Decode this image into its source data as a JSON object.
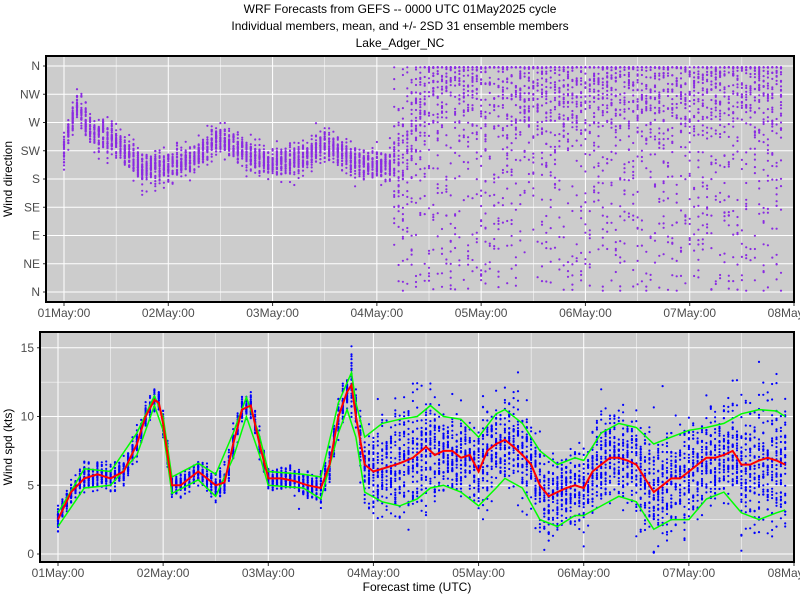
{
  "header": {
    "line1": "WRF Forecasts from GEFS --  0000 UTC 01May2025  cycle",
    "line2": "Individual members, mean, and +/- 2SD    31 ensemble members",
    "line3": "Lake_Adger_NC"
  },
  "colors": {
    "panel_bg": "#cccccc",
    "grid": "#ffffff",
    "direction_points": "#8a2be2",
    "speed_points": "#0000ff",
    "mean_line": "#ff0000",
    "sd_lines": "#00ff00"
  },
  "chart_data": [
    {
      "type": "scatter",
      "ylabel": "Wind direction",
      "xlabel": "",
      "x_ticks": [
        "01May:00",
        "02May:00",
        "03May:00",
        "04May:00",
        "05May:00",
        "06May:00",
        "07May:00",
        "08May:00"
      ],
      "xlim_hours": [
        0,
        168
      ],
      "y_ticks": [
        "N",
        "NE",
        "E",
        "SE",
        "S",
        "SW",
        "W",
        "NW",
        "N"
      ],
      "ylim_degrees": [
        0,
        360
      ],
      "grid": true,
      "members": 31,
      "series": [
        {
          "representation": "ensemble member points (31 per hour)",
          "ensemble_median_direction_deg": [
            {
              "hour": 0,
              "deg": 230
            },
            {
              "hour": 3,
              "deg": 300
            },
            {
              "hour": 6,
              "deg": 255
            },
            {
              "hour": 12,
              "deg": 240
            },
            {
              "hour": 18,
              "deg": 195
            },
            {
              "hour": 24,
              "deg": 200
            },
            {
              "hour": 30,
              "deg": 215
            },
            {
              "hour": 36,
              "deg": 245
            },
            {
              "hour": 42,
              "deg": 220
            },
            {
              "hour": 48,
              "deg": 205
            },
            {
              "hour": 54,
              "deg": 210
            },
            {
              "hour": 60,
              "deg": 235
            },
            {
              "hour": 66,
              "deg": 210
            },
            {
              "hour": 72,
              "deg": 200
            },
            {
              "hour": 78,
              "deg": 210
            },
            {
              "hour": 84,
              "deg": 330
            },
            {
              "hour": 90,
              "deg": 340
            },
            {
              "hour": 96,
              "deg": 350
            },
            {
              "hour": 102,
              "deg": 345
            },
            {
              "hour": 108,
              "deg": 330
            },
            {
              "hour": 114,
              "deg": 320
            },
            {
              "hour": 120,
              "deg": 335
            },
            {
              "hour": 126,
              "deg": 330
            },
            {
              "hour": 132,
              "deg": 330
            },
            {
              "hour": 138,
              "deg": 320
            },
            {
              "hour": 144,
              "deg": 325
            },
            {
              "hour": 150,
              "deg": 335
            },
            {
              "hour": 156,
              "deg": 335
            },
            {
              "hour": 162,
              "deg": 330
            },
            {
              "hour": 168,
              "deg": 325
            }
          ]
        }
      ]
    },
    {
      "type": "line",
      "ylabel": "Wind spd (kts)",
      "xlabel": "Forecast time (UTC)",
      "x_ticks": [
        "01May:00",
        "02May:00",
        "03May:00",
        "04May:00",
        "05May:00",
        "06May:00",
        "07May:00",
        "08May:00"
      ],
      "xlim_hours": [
        0,
        168
      ],
      "y_ticks": [
        "0",
        "5",
        "10",
        "15"
      ],
      "ylim": [
        0,
        16
      ],
      "grid": true,
      "members": 31,
      "series": [
        {
          "name": "mean",
          "points": [
            {
              "hour": 0,
              "kts": 2.5
            },
            {
              "hour": 3,
              "kts": 4.5
            },
            {
              "hour": 6,
              "kts": 5.5
            },
            {
              "hour": 9,
              "kts": 5.8
            },
            {
              "hour": 12,
              "kts": 5.5
            },
            {
              "hour": 15,
              "kts": 6.0
            },
            {
              "hour": 18,
              "kts": 8.0
            },
            {
              "hour": 20,
              "kts": 10.0
            },
            {
              "hour": 22,
              "kts": 11.2
            },
            {
              "hour": 23,
              "kts": 11.0
            },
            {
              "hour": 24,
              "kts": 9.5
            },
            {
              "hour": 26,
              "kts": 5.0
            },
            {
              "hour": 28,
              "kts": 5.0
            },
            {
              "hour": 30,
              "kts": 5.5
            },
            {
              "hour": 32,
              "kts": 6.0
            },
            {
              "hour": 34,
              "kts": 5.5
            },
            {
              "hour": 36,
              "kts": 5.0
            },
            {
              "hour": 38,
              "kts": 5.2
            },
            {
              "hour": 40,
              "kts": 8.0
            },
            {
              "hour": 42,
              "kts": 10.5
            },
            {
              "hour": 44,
              "kts": 10.8
            },
            {
              "hour": 46,
              "kts": 8.0
            },
            {
              "hour": 48,
              "kts": 5.5
            },
            {
              "hour": 51,
              "kts": 5.5
            },
            {
              "hour": 54,
              "kts": 5.3
            },
            {
              "hour": 57,
              "kts": 5.0
            },
            {
              "hour": 60,
              "kts": 4.8
            },
            {
              "hour": 62,
              "kts": 6.5
            },
            {
              "hour": 64,
              "kts": 10.0
            },
            {
              "hour": 66,
              "kts": 11.8
            },
            {
              "hour": 67,
              "kts": 12.3
            },
            {
              "hour": 68,
              "kts": 10.0
            },
            {
              "hour": 70,
              "kts": 6.5
            },
            {
              "hour": 72,
              "kts": 6.0
            },
            {
              "hour": 75,
              "kts": 6.3
            },
            {
              "hour": 78,
              "kts": 6.6
            },
            {
              "hour": 81,
              "kts": 7.0
            },
            {
              "hour": 84,
              "kts": 7.8
            },
            {
              "hour": 86,
              "kts": 7.2
            },
            {
              "hour": 88,
              "kts": 7.5
            },
            {
              "hour": 90,
              "kts": 7.5
            },
            {
              "hour": 92,
              "kts": 7.0
            },
            {
              "hour": 94,
              "kts": 7.2
            },
            {
              "hour": 96,
              "kts": 6.0
            },
            {
              "hour": 98,
              "kts": 7.5
            },
            {
              "hour": 100,
              "kts": 8.0
            },
            {
              "hour": 102,
              "kts": 8.3
            },
            {
              "hour": 104,
              "kts": 7.8
            },
            {
              "hour": 106,
              "kts": 7.2
            },
            {
              "hour": 108,
              "kts": 6.5
            },
            {
              "hour": 110,
              "kts": 5.0
            },
            {
              "hour": 112,
              "kts": 4.2
            },
            {
              "hour": 114,
              "kts": 4.5
            },
            {
              "hour": 116,
              "kts": 4.8
            },
            {
              "hour": 118,
              "kts": 5.0
            },
            {
              "hour": 120,
              "kts": 4.8
            },
            {
              "hour": 122,
              "kts": 6.0
            },
            {
              "hour": 124,
              "kts": 6.5
            },
            {
              "hour": 126,
              "kts": 7.0
            },
            {
              "hour": 128,
              "kts": 7.0
            },
            {
              "hour": 130,
              "kts": 6.8
            },
            {
              "hour": 132,
              "kts": 6.5
            },
            {
              "hour": 134,
              "kts": 5.5
            },
            {
              "hour": 136,
              "kts": 4.5
            },
            {
              "hour": 138,
              "kts": 5.0
            },
            {
              "hour": 140,
              "kts": 5.5
            },
            {
              "hour": 142,
              "kts": 5.5
            },
            {
              "hour": 144,
              "kts": 6.0
            },
            {
              "hour": 146,
              "kts": 6.5
            },
            {
              "hour": 148,
              "kts": 7.0
            },
            {
              "hour": 150,
              "kts": 7.0
            },
            {
              "hour": 152,
              "kts": 7.2
            },
            {
              "hour": 154,
              "kts": 7.5
            },
            {
              "hour": 156,
              "kts": 6.5
            },
            {
              "hour": 158,
              "kts": 6.5
            },
            {
              "hour": 160,
              "kts": 6.8
            },
            {
              "hour": 162,
              "kts": 7.0
            },
            {
              "hour": 164,
              "kts": 6.8
            },
            {
              "hour": 166,
              "kts": 6.5
            }
          ]
        },
        {
          "name": "+2SD",
          "points": [
            {
              "hour": 0,
              "kts": 3.0
            },
            {
              "hour": 6,
              "kts": 6.2
            },
            {
              "hour": 12,
              "kts": 6.0
            },
            {
              "hour": 18,
              "kts": 8.8
            },
            {
              "hour": 22,
              "kts": 11.5
            },
            {
              "hour": 24,
              "kts": 10.0
            },
            {
              "hour": 26,
              "kts": 5.6
            },
            {
              "hour": 32,
              "kts": 6.6
            },
            {
              "hour": 36,
              "kts": 5.8
            },
            {
              "hour": 40,
              "kts": 8.8
            },
            {
              "hour": 43,
              "kts": 11.4
            },
            {
              "hour": 46,
              "kts": 8.6
            },
            {
              "hour": 48,
              "kts": 6.0
            },
            {
              "hour": 56,
              "kts": 5.8
            },
            {
              "hour": 60,
              "kts": 5.6
            },
            {
              "hour": 64,
              "kts": 11.0
            },
            {
              "hour": 67,
              "kts": 13.2
            },
            {
              "hour": 68,
              "kts": 11.0
            },
            {
              "hour": 70,
              "kts": 8.5
            },
            {
              "hour": 74,
              "kts": 9.5
            },
            {
              "hour": 78,
              "kts": 9.8
            },
            {
              "hour": 82,
              "kts": 10.0
            },
            {
              "hour": 85,
              "kts": 10.8
            },
            {
              "hour": 88,
              "kts": 10.0
            },
            {
              "hour": 92,
              "kts": 9.8
            },
            {
              "hour": 96,
              "kts": 8.5
            },
            {
              "hour": 100,
              "kts": 10.2
            },
            {
              "hour": 102,
              "kts": 10.5
            },
            {
              "hour": 106,
              "kts": 9.5
            },
            {
              "hour": 110,
              "kts": 7.5
            },
            {
              "hour": 114,
              "kts": 6.5
            },
            {
              "hour": 118,
              "kts": 7.0
            },
            {
              "hour": 120,
              "kts": 6.8
            },
            {
              "hour": 124,
              "kts": 8.8
            },
            {
              "hour": 128,
              "kts": 9.5
            },
            {
              "hour": 132,
              "kts": 9.2
            },
            {
              "hour": 136,
              "kts": 8.0
            },
            {
              "hour": 140,
              "kts": 8.5
            },
            {
              "hour": 144,
              "kts": 9.0
            },
            {
              "hour": 148,
              "kts": 9.2
            },
            {
              "hour": 152,
              "kts": 9.5
            },
            {
              "hour": 156,
              "kts": 10.2
            },
            {
              "hour": 160,
              "kts": 10.5
            },
            {
              "hour": 164,
              "kts": 10.4
            },
            {
              "hour": 166,
              "kts": 10.0
            }
          ]
        },
        {
          "name": "-2SD",
          "points": [
            {
              "hour": 0,
              "kts": 2.0
            },
            {
              "hour": 6,
              "kts": 4.8
            },
            {
              "hour": 12,
              "kts": 5.0
            },
            {
              "hour": 18,
              "kts": 7.2
            },
            {
              "hour": 22,
              "kts": 10.8
            },
            {
              "hour": 24,
              "kts": 9.0
            },
            {
              "hour": 26,
              "kts": 4.4
            },
            {
              "hour": 32,
              "kts": 5.4
            },
            {
              "hour": 36,
              "kts": 4.2
            },
            {
              "hour": 40,
              "kts": 7.0
            },
            {
              "hour": 43,
              "kts": 10.0
            },
            {
              "hour": 46,
              "kts": 7.2
            },
            {
              "hour": 48,
              "kts": 5.0
            },
            {
              "hour": 56,
              "kts": 4.8
            },
            {
              "hour": 60,
              "kts": 4.0
            },
            {
              "hour": 64,
              "kts": 8.8
            },
            {
              "hour": 66,
              "kts": 10.5
            },
            {
              "hour": 68,
              "kts": 8.5
            },
            {
              "hour": 70,
              "kts": 4.5
            },
            {
              "hour": 74,
              "kts": 3.8
            },
            {
              "hour": 78,
              "kts": 3.5
            },
            {
              "hour": 82,
              "kts": 4.0
            },
            {
              "hour": 85,
              "kts": 4.8
            },
            {
              "hour": 88,
              "kts": 5.0
            },
            {
              "hour": 92,
              "kts": 4.5
            },
            {
              "hour": 96,
              "kts": 3.5
            },
            {
              "hour": 100,
              "kts": 4.8
            },
            {
              "hour": 102,
              "kts": 5.5
            },
            {
              "hour": 106,
              "kts": 4.8
            },
            {
              "hour": 110,
              "kts": 2.5
            },
            {
              "hour": 114,
              "kts": 2.0
            },
            {
              "hour": 118,
              "kts": 2.8
            },
            {
              "hour": 120,
              "kts": 2.8
            },
            {
              "hour": 124,
              "kts": 3.5
            },
            {
              "hour": 128,
              "kts": 4.2
            },
            {
              "hour": 132,
              "kts": 3.8
            },
            {
              "hour": 136,
              "kts": 1.8
            },
            {
              "hour": 140,
              "kts": 2.5
            },
            {
              "hour": 144,
              "kts": 2.5
            },
            {
              "hour": 148,
              "kts": 4.0
            },
            {
              "hour": 152,
              "kts": 4.5
            },
            {
              "hour": 156,
              "kts": 3.0
            },
            {
              "hour": 160,
              "kts": 2.5
            },
            {
              "hour": 164,
              "kts": 3.0
            },
            {
              "hour": 166,
              "kts": 3.2
            }
          ]
        }
      ]
    }
  ]
}
